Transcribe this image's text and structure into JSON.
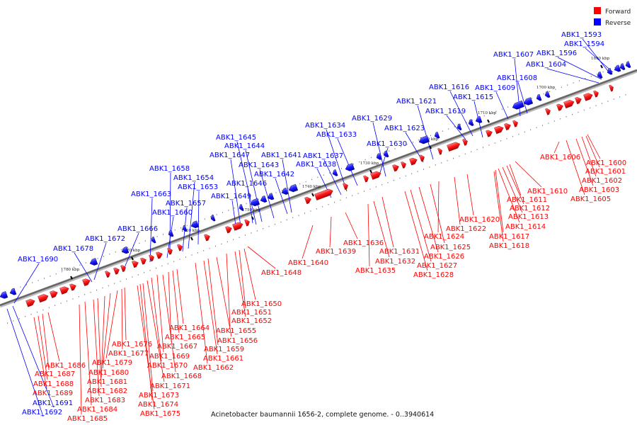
{
  "legend": [
    {
      "label": "Forward",
      "color": "#ff0000"
    },
    {
      "label": "Reverse",
      "color": "#0000ff"
    }
  ],
  "caption": "Acinetobacter baumannii 1656-2, complete genome. - 0..3940614",
  "colors": {
    "forward": "#ff0000",
    "reverse": "#0000ff",
    "backbone": "#888888"
  },
  "ticks": [
    "1690 kbp",
    "1700 kbp",
    "1710 kbp",
    "1720 kbp",
    "1730 kbp",
    "1740 kbp",
    "1750 kbp",
    "1760 kbp",
    "1770 kbp",
    "1780 kbp"
  ],
  "reverse_genes": [
    "ABK1_1593",
    "ABK1_1594",
    "ABK1_1596",
    "ABK1_1604",
    "ABK1_1607",
    "ABK1_1608",
    "ABK1_1609",
    "ABK1_1615",
    "ABK1_1616",
    "ABK1_1619",
    "ABK1_1621",
    "ABK1_1623",
    "ABK1_1629",
    "ABK1_1630",
    "ABK1_1633",
    "ABK1_1634",
    "ABK1_1637",
    "ABK1_1638",
    "ABK1_1641",
    "ABK1_1642",
    "ABK1_1643",
    "ABK1_1644",
    "ABK1_1645",
    "ABK1_1646",
    "ABK1_1647",
    "ABK1_1649",
    "ABK1_1653",
    "ABK1_1654",
    "ABK1_1657",
    "ABK1_1658",
    "ABK1_1660",
    "ABK1_1663",
    "ABK1_1666",
    "ABK1_1672",
    "ABK1_1678",
    "ABK1_1690",
    "ABK1_1691",
    "ABK1_1692"
  ],
  "forward_genes": [
    "ABK1_1600",
    "ABK1_1601",
    "ABK1_1602",
    "ABK1_1603",
    "ABK1_1605",
    "ABK1_1606",
    "ABK1_1610",
    "ABK1_1611",
    "ABK1_1612",
    "ABK1_1613",
    "ABK1_1614",
    "ABK1_1617",
    "ABK1_1618",
    "ABK1_1620",
    "ABK1_1622",
    "ABK1_1624",
    "ABK1_1625",
    "ABK1_1626",
    "ABK1_1627",
    "ABK1_1628",
    "ABK1_1631",
    "ABK1_1632",
    "ABK1_1635",
    "ABK1_1636",
    "ABK1_1639",
    "ABK1_1640",
    "ABK1_1648",
    "ABK1_1650",
    "ABK1_1651",
    "ABK1_1652",
    "ABK1_1655",
    "ABK1_1656",
    "ABK1_1659",
    "ABK1_1661",
    "ABK1_1662",
    "ABK1_1664",
    "ABK1_1665",
    "ABK1_1667",
    "ABK1_1668",
    "ABK1_1669",
    "ABK1_1670",
    "ABK1_1671",
    "ABK1_1673",
    "ABK1_1674",
    "ABK1_1675",
    "ABK1_1676",
    "ABK1_1677",
    "ABK1_1679",
    "ABK1_1680",
    "ABK1_1681",
    "ABK1_1682",
    "ABK1_1683",
    "ABK1_1684",
    "ABK1_1685",
    "ABK1_1686",
    "ABK1_1687",
    "ABK1_1688",
    "ABK1_1689"
  ]
}
